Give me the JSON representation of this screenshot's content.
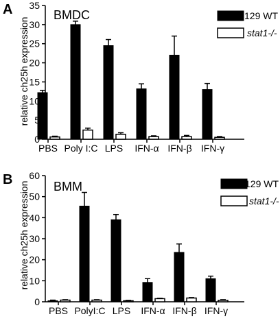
{
  "figure": {
    "ylabel": "relative ch25h expression",
    "colors": {
      "wt": "#000000",
      "ko": "#ffffff",
      "axis": "#000000"
    }
  },
  "chart_data": [
    {
      "panel_letter": "A",
      "type": "bar",
      "title": "BMDC",
      "ylabel": "relative ch25h expression",
      "ylim": [
        0,
        35
      ],
      "yticks": [
        "0",
        "5",
        "10",
        "15",
        "20",
        "25",
        "30",
        "35"
      ],
      "categories": [
        "PBS",
        "Poly I:C",
        "LPS",
        "IFN-α",
        "IFN-β",
        "IFN-γ"
      ],
      "series": [
        {
          "name": "129 WT",
          "values": [
            12.2,
            30.0,
            24.5,
            13.2,
            22.0,
            13.0
          ],
          "errors": [
            0.6,
            0.9,
            1.6,
            1.3,
            5.0,
            1.6
          ]
        },
        {
          "name": "stat1-/-",
          "italic": true,
          "values": [
            0.6,
            2.4,
            1.3,
            0.7,
            0.7,
            0.5
          ],
          "errors": [
            0.2,
            0.5,
            0.4,
            0.2,
            0.3,
            0.2
          ]
        }
      ],
      "legend": "top-right",
      "grid": false
    },
    {
      "panel_letter": "B",
      "type": "bar",
      "title": "BMM",
      "ylabel": "relative ch25h expression",
      "ylim": [
        0,
        60
      ],
      "yticks": [
        "0",
        "10",
        "20",
        "30",
        "40",
        "50",
        "60"
      ],
      "categories": [
        "PBS",
        "PolyI:C",
        "LPS",
        "IFN-α",
        "IFN-β",
        "IFN-γ"
      ],
      "series": [
        {
          "name": "129 WT",
          "values": [
            0.5,
            45.5,
            39.0,
            9.2,
            23.5,
            11.0
          ],
          "errors": [
            0.3,
            6.5,
            2.5,
            1.8,
            4.0,
            1.2
          ]
        },
        {
          "name": "stat1-/-",
          "italic": true,
          "values": [
            0.8,
            0.8,
            0.5,
            1.5,
            1.8,
            0.7
          ],
          "errors": [
            0.2,
            0.2,
            0.2,
            0.2,
            0.2,
            0.3
          ]
        }
      ],
      "legend": "top-right",
      "grid": false
    }
  ]
}
